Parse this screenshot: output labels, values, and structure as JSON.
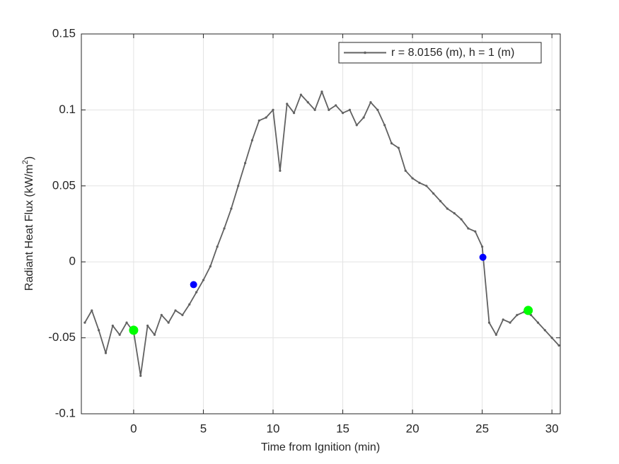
{
  "chart_data": {
    "type": "line",
    "xlabel": "Time from Ignition (min)",
    "ylabel": [
      "Radiant Heat Flux (kW/m",
      "2",
      ")"
    ],
    "xlim": [
      -3.75,
      30.6
    ],
    "ylim": [
      -0.1,
      0.15
    ],
    "xticks": [
      0,
      5,
      10,
      15,
      20,
      25,
      30
    ],
    "yticks": [
      -0.1,
      -0.05,
      0,
      0.05,
      0.1,
      0.15
    ],
    "grid": true,
    "legend_loc": "northeast",
    "x": [
      -3.5,
      -3,
      -2.5,
      -2,
      -1.5,
      -1,
      -0.5,
      0,
      0.5,
      1,
      1.5,
      2,
      2.5,
      3,
      3.5,
      4,
      4.5,
      5,
      5.5,
      6,
      6.5,
      7,
      7.5,
      8,
      8.5,
      9,
      9.5,
      10,
      10.5,
      11,
      11.5,
      12,
      12.5,
      13,
      13.5,
      14,
      14.5,
      15,
      15.5,
      16,
      16.5,
      17,
      17.5,
      18,
      18.5,
      19,
      19.5,
      20,
      20.5,
      21,
      21.5,
      22,
      22.5,
      23,
      23.5,
      24,
      24.5,
      25,
      25.5,
      26,
      26.5,
      27,
      27.5,
      28,
      28.5,
      29,
      29.5,
      30,
      30.5
    ],
    "series": [
      {
        "name": "r = 8.0156 (m), h = 1 (m)",
        "color": "#616161",
        "values": [
          -0.04,
          -0.032,
          -0.045,
          -0.06,
          -0.042,
          -0.048,
          -0.04,
          -0.046,
          -0.075,
          -0.042,
          -0.048,
          -0.035,
          -0.04,
          -0.032,
          -0.035,
          -0.028,
          -0.02,
          -0.012,
          -0.003,
          0.01,
          0.022,
          0.035,
          0.05,
          0.065,
          0.08,
          0.093,
          0.095,
          0.1,
          0.06,
          0.104,
          0.098,
          0.11,
          0.105,
          0.1,
          0.112,
          0.1,
          0.103,
          0.098,
          0.1,
          0.09,
          0.095,
          0.105,
          0.1,
          0.09,
          0.078,
          0.075,
          0.06,
          0.055,
          0.052,
          0.05,
          0.045,
          0.04,
          0.035,
          0.032,
          0.028,
          0.022,
          0.02,
          0.01,
          -0.04,
          -0.048,
          -0.038,
          -0.04,
          -0.035,
          -0.033,
          -0.035,
          -0.04,
          -0.045,
          -0.05,
          -0.055
        ]
      }
    ],
    "points": [
      {
        "color": "#0000ff",
        "x": [
          4.3,
          25.05
        ],
        "values": [
          -0.015,
          0.003
        ]
      },
      {
        "color": "#00ff00",
        "x": [
          0,
          28.3
        ],
        "values": [
          -0.045,
          -0.032
        ]
      }
    ]
  }
}
